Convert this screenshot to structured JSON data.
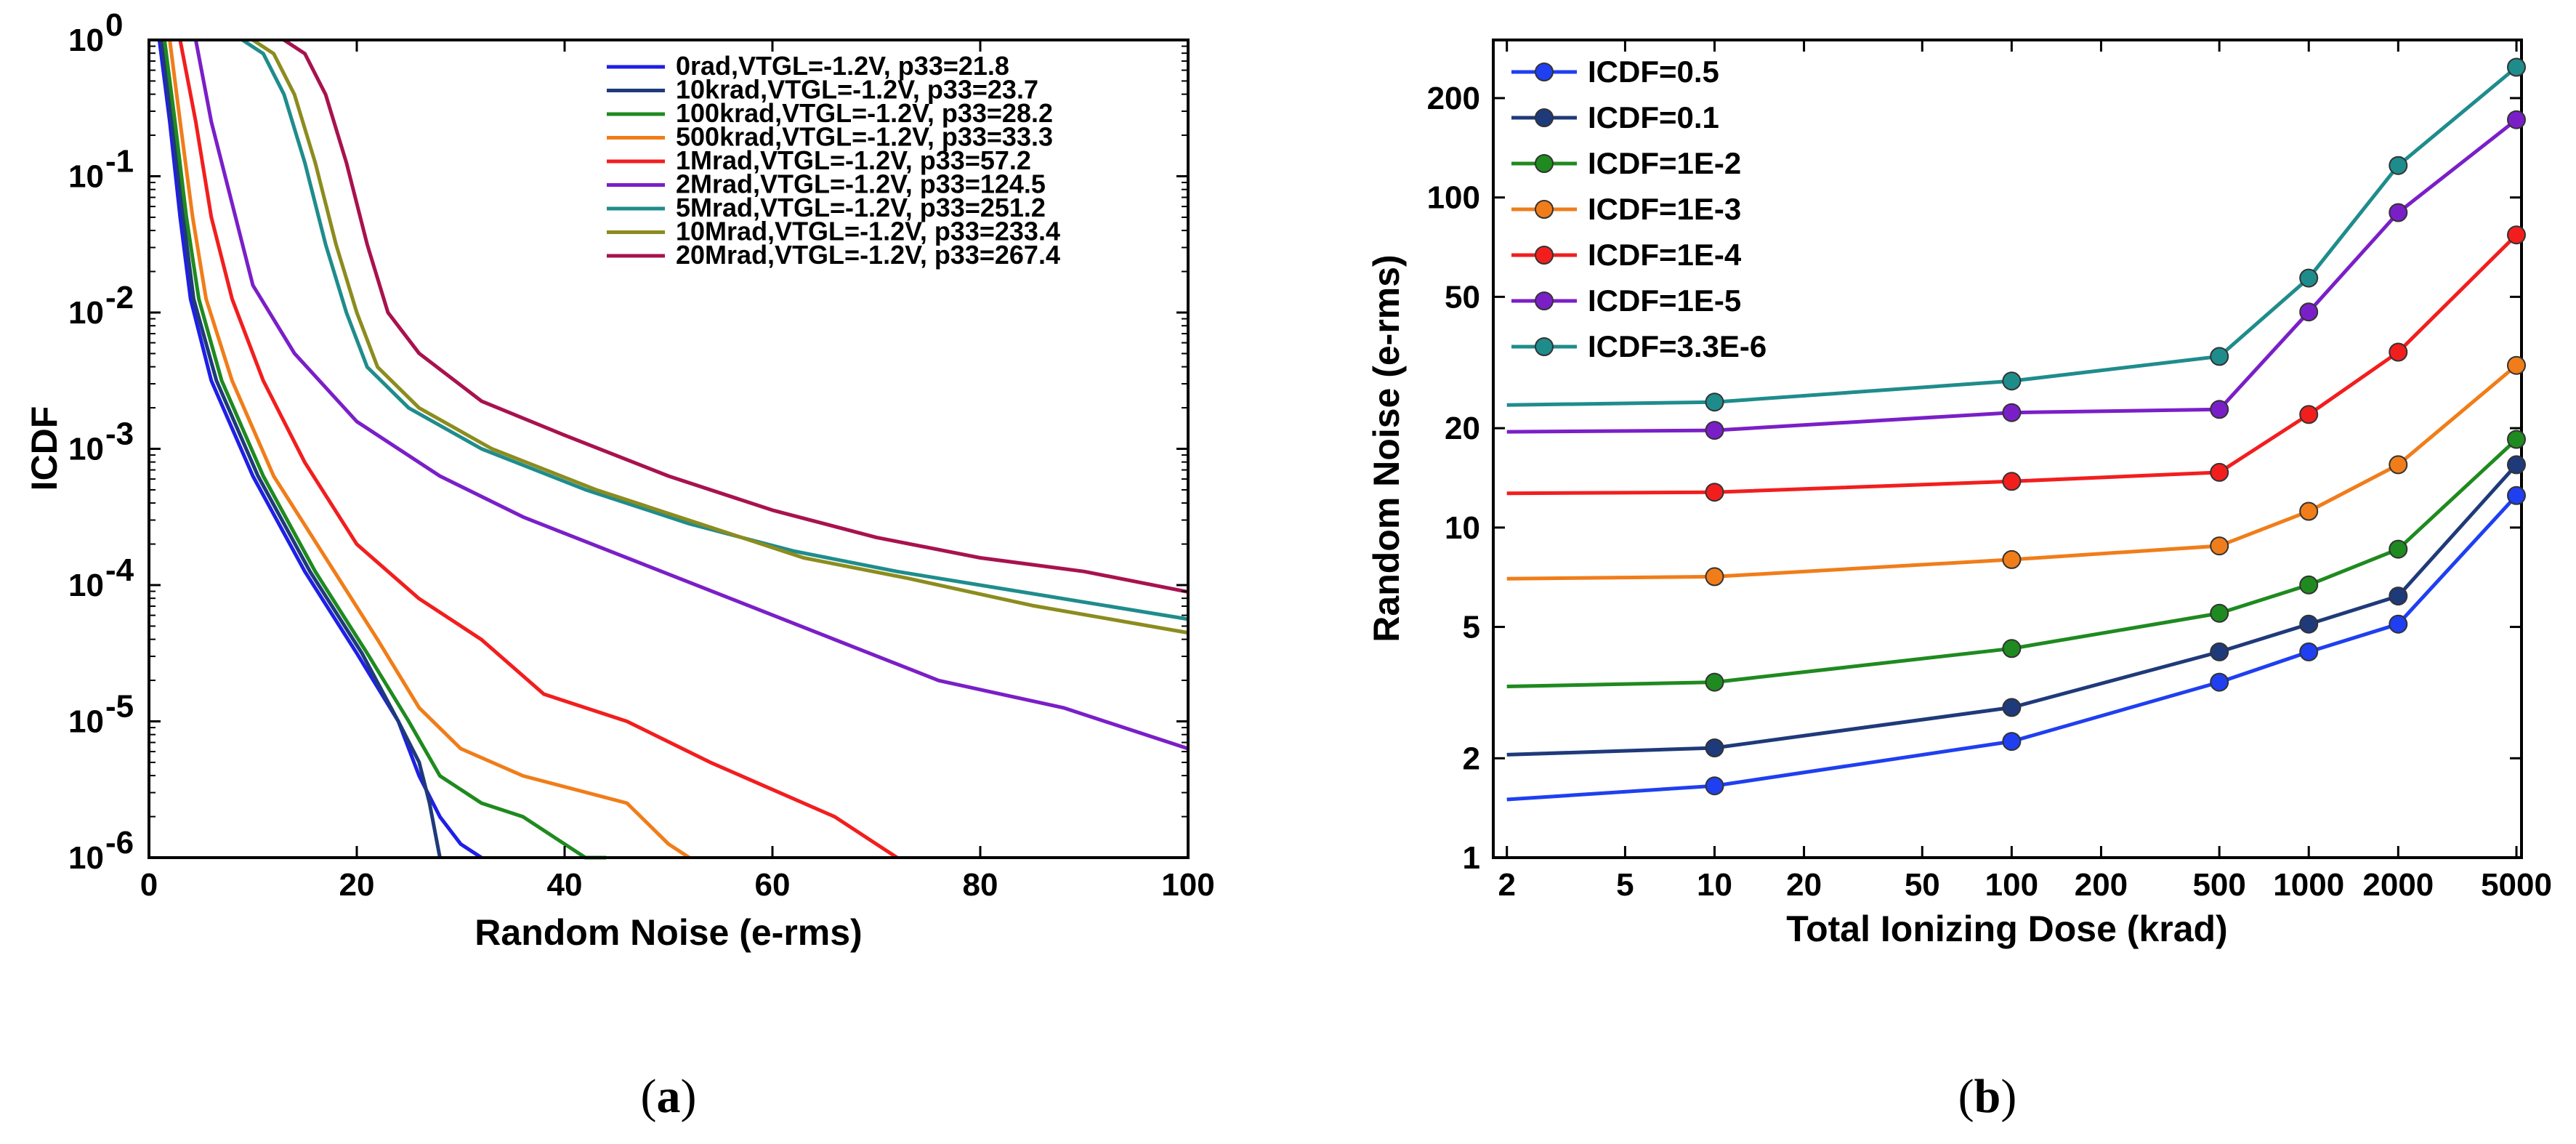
{
  "chart_data": [
    {
      "type": "line",
      "panel": "a",
      "caption": "a",
      "xlabel": "Random Noise (e-rms)",
      "ylabel": "ICDF",
      "xlim": [
        0,
        100
      ],
      "ylim_log10": [
        -6,
        0
      ],
      "xticks": [
        "0",
        "20",
        "40",
        "60",
        "80",
        "100"
      ],
      "yticks": [
        {
          "base": "10",
          "exp": "0"
        },
        {
          "base": "10",
          "exp": "-1"
        },
        {
          "base": "10",
          "exp": "-2"
        },
        {
          "base": "10",
          "exp": "-3"
        },
        {
          "base": "10",
          "exp": "-4"
        },
        {
          "base": "10",
          "exp": "-5"
        },
        {
          "base": "10",
          "exp": "-6"
        }
      ],
      "legend_position": "top-right",
      "series": [
        {
          "name": "0rad,VTGL=-1.2V, p33=21.8",
          "color": "#1f1fe6",
          "points": [
            [
              1,
              0
            ],
            [
              2,
              -0.6
            ],
            [
              3,
              -1.3
            ],
            [
              4,
              -1.9
            ],
            [
              6,
              -2.5
            ],
            [
              10,
              -3.2
            ],
            [
              15,
              -3.9
            ],
            [
              20,
              -4.5
            ],
            [
              24,
              -5.0
            ],
            [
              26,
              -5.4
            ],
            [
              28,
              -5.7
            ],
            [
              30,
              -5.9
            ],
            [
              32,
              -6.0
            ]
          ]
        },
        {
          "name": "10krad,VTGL=-1.2V, p33=23.7",
          "color": "#1f3a7a",
          "points": [
            [
              1.2,
              0
            ],
            [
              2.2,
              -0.6
            ],
            [
              3.3,
              -1.3
            ],
            [
              4.3,
              -1.9
            ],
            [
              6.5,
              -2.5
            ],
            [
              10.5,
              -3.2
            ],
            [
              15.5,
              -3.9
            ],
            [
              20.5,
              -4.5
            ],
            [
              24,
              -5.0
            ],
            [
              26,
              -5.3
            ],
            [
              27,
              -5.6
            ],
            [
              28,
              -6.0
            ]
          ]
        },
        {
          "name": "100krad,VTGL=-1.2V, p33=28.2",
          "color": "#1f8a1f",
          "points": [
            [
              1.5,
              0
            ],
            [
              2.5,
              -0.6
            ],
            [
              3.6,
              -1.3
            ],
            [
              4.8,
              -1.9
            ],
            [
              7,
              -2.5
            ],
            [
              11,
              -3.2
            ],
            [
              16,
              -3.9
            ],
            [
              21,
              -4.5
            ],
            [
              25,
              -5.0
            ],
            [
              28,
              -5.4
            ],
            [
              32,
              -5.6
            ],
            [
              36,
              -5.7
            ],
            [
              40,
              -5.9
            ],
            [
              42,
              -6.0
            ],
            [
              44,
              -6.0
            ]
          ]
        },
        {
          "name": "500krad,VTGL=-1.2V, p33=33.3",
          "color": "#f07d1a",
          "points": [
            [
              2,
              0
            ],
            [
              3,
              -0.6
            ],
            [
              4.2,
              -1.3
            ],
            [
              5.5,
              -1.9
            ],
            [
              8,
              -2.5
            ],
            [
              12,
              -3.2
            ],
            [
              17,
              -3.8
            ],
            [
              22,
              -4.4
            ],
            [
              26,
              -4.9
            ],
            [
              30,
              -5.2
            ],
            [
              36,
              -5.4
            ],
            [
              46,
              -5.6
            ],
            [
              50,
              -5.9
            ],
            [
              52,
              -6.0
            ]
          ]
        },
        {
          "name": "1Mrad,VTGL=-1.2V, p33=57.2",
          "color": "#f21e1e",
          "points": [
            [
              3,
              0
            ],
            [
              4.5,
              -0.6
            ],
            [
              6,
              -1.3
            ],
            [
              8,
              -1.9
            ],
            [
              11,
              -2.5
            ],
            [
              15,
              -3.1
            ],
            [
              20,
              -3.7
            ],
            [
              26,
              -4.1
            ],
            [
              32,
              -4.4
            ],
            [
              38,
              -4.8
            ],
            [
              46,
              -5.0
            ],
            [
              54,
              -5.3
            ],
            [
              60,
              -5.5
            ],
            [
              66,
              -5.7
            ],
            [
              70,
              -5.9
            ],
            [
              72,
              -6.0
            ]
          ]
        },
        {
          "name": "2Mrad,VTGL=-1.2V, p33=124.5",
          "color": "#7a1fc8",
          "points": [
            [
              4.5,
              0
            ],
            [
              6,
              -0.6
            ],
            [
              8,
              -1.2
            ],
            [
              10,
              -1.8
            ],
            [
              14,
              -2.3
            ],
            [
              20,
              -2.8
            ],
            [
              28,
              -3.2
            ],
            [
              36,
              -3.5
            ],
            [
              46,
              -3.8
            ],
            [
              56,
              -4.1
            ],
            [
              66,
              -4.4
            ],
            [
              76,
              -4.7
            ],
            [
              88,
              -4.9
            ],
            [
              100,
              -5.2
            ]
          ]
        },
        {
          "name": "5Mrad,VTGL=-1.2V, p33=251.2",
          "color": "#1f8c8c",
          "points": [
            [
              9,
              0
            ],
            [
              11,
              -0.1
            ],
            [
              13,
              -0.4
            ],
            [
              15,
              -0.9
            ],
            [
              17,
              -1.5
            ],
            [
              19,
              -2.0
            ],
            [
              21,
              -2.4
            ],
            [
              25,
              -2.7
            ],
            [
              32,
              -3.0
            ],
            [
              42,
              -3.3
            ],
            [
              52,
              -3.55
            ],
            [
              62,
              -3.75
            ],
            [
              72,
              -3.9
            ],
            [
              84,
              -4.05
            ],
            [
              100,
              -4.25
            ]
          ]
        },
        {
          "name": "10Mrad,VTGL=-1.2V, p33=233.4",
          "color": "#8c8c1f",
          "points": [
            [
              10,
              0
            ],
            [
              12,
              -0.1
            ],
            [
              14,
              -0.4
            ],
            [
              16,
              -0.9
            ],
            [
              18,
              -1.5
            ],
            [
              20,
              -2.0
            ],
            [
              22,
              -2.4
            ],
            [
              26,
              -2.7
            ],
            [
              33,
              -3.0
            ],
            [
              43,
              -3.3
            ],
            [
              53,
              -3.55
            ],
            [
              63,
              -3.8
            ],
            [
              73,
              -3.95
            ],
            [
              85,
              -4.15
            ],
            [
              100,
              -4.35
            ]
          ]
        },
        {
          "name": "20Mrad,VTGL=-1.2V, p33=267.4",
          "color": "#a8124e",
          "points": [
            [
              13,
              0
            ],
            [
              15,
              -0.1
            ],
            [
              17,
              -0.4
            ],
            [
              19,
              -0.9
            ],
            [
              21,
              -1.5
            ],
            [
              23,
              -2.0
            ],
            [
              26,
              -2.3
            ],
            [
              32,
              -2.65
            ],
            [
              40,
              -2.9
            ],
            [
              50,
              -3.2
            ],
            [
              60,
              -3.45
            ],
            [
              70,
              -3.65
            ],
            [
              80,
              -3.8
            ],
            [
              90,
              -3.9
            ],
            [
              100,
              -4.05
            ]
          ]
        }
      ]
    },
    {
      "type": "line",
      "panel": "b",
      "caption": "b",
      "xlabel": "Total Ionizing Dose (krad)",
      "ylabel": "Random Noise (e-rms)",
      "xscale": "log",
      "yscale": "log",
      "xlim": [
        1.8,
        5200
      ],
      "ylim": [
        1,
        300
      ],
      "xticks": [
        2,
        5,
        10,
        20,
        50,
        100,
        200,
        500,
        1000,
        2000,
        5000
      ],
      "yticks": [
        1,
        2,
        5,
        10,
        20,
        50,
        100,
        200
      ],
      "xtick_labels": [
        "2",
        "5",
        "10",
        "20",
        "50",
        "100",
        "200",
        "500",
        "1000",
        "2000",
        "5000"
      ],
      "ytick_labels": [
        "1",
        "2",
        "5",
        "10",
        "20",
        "50",
        "100",
        "200"
      ],
      "x": [
        2,
        10,
        100,
        500,
        1000,
        2000,
        5000
      ],
      "legend_position": "top-left",
      "series": [
        {
          "name": "ICDF=0.5",
          "color": "#1f3ff0",
          "values": [
            1.5,
            1.65,
            2.25,
            3.4,
            4.2,
            5.1,
            12.5
          ]
        },
        {
          "name": "ICDF=0.1",
          "color": "#1f3a7a",
          "values": [
            2.05,
            2.15,
            2.85,
            4.2,
            5.1,
            6.2,
            15.5
          ]
        },
        {
          "name": "ICDF=1E-2",
          "color": "#1f8a1f",
          "values": [
            3.3,
            3.4,
            4.3,
            5.5,
            6.7,
            8.6,
            18.5
          ]
        },
        {
          "name": "ICDF=1E-3",
          "color": "#f07d1a",
          "values": [
            7.0,
            7.1,
            8.0,
            8.8,
            11.2,
            15.5,
            31.0
          ]
        },
        {
          "name": "ICDF=1E-4",
          "color": "#f21e1e",
          "values": [
            12.7,
            12.8,
            13.8,
            14.7,
            22.0,
            34.0,
            77.0
          ]
        },
        {
          "name": "ICDF=1E-5",
          "color": "#7a1fc8",
          "values": [
            19.5,
            19.7,
            22.3,
            22.8,
            45.0,
            90.0,
            172.0
          ]
        },
        {
          "name": "ICDF=3.3E-6",
          "color": "#1f8c8c",
          "values": [
            23.5,
            24.0,
            27.8,
            33.0,
            57.0,
            125.0,
            248.0
          ]
        }
      ]
    }
  ]
}
